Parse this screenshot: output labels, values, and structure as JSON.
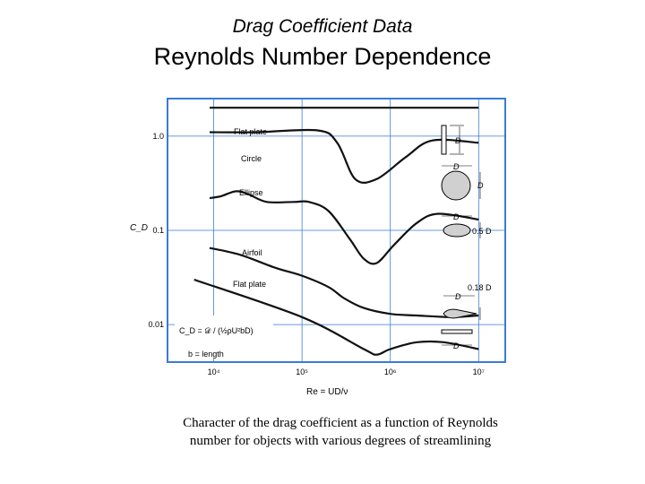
{
  "slide": {
    "subtitle": "Drag Coefficient Data",
    "title": "Reynolds Number Dependence",
    "caption_line1": "Character of the drag coefficient as a function of Reynolds",
    "caption_line2": "number for objects with various degrees of streamlining"
  },
  "chart_data": {
    "type": "line",
    "x_scale": "log",
    "y_scale": "log",
    "xlim": [
      3000,
      20000000
    ],
    "ylim": [
      0.004,
      2.5
    ],
    "grid": true,
    "x_ticks": [
      10000,
      100000,
      1000000,
      10000000
    ],
    "x_tick_labels": [
      "10⁴",
      "10⁵",
      "10⁶",
      "10⁷"
    ],
    "y_ticks": [
      1.0,
      0.1,
      0.01
    ],
    "y_tick_labels": [
      "1.0",
      "0.1",
      "0.01"
    ],
    "ylabel": "C_D",
    "xlabel": "Re = UD/ν",
    "formula": "C_D = 𝒟 / (½ρU²bD)",
    "b_note": "b = length",
    "ratio_ellipse": "0.5 D",
    "ratio_airfoil": "0.18 D",
    "dim_D": "D",
    "series": [
      {
        "name": "Flat plate",
        "points": [
          [
            9000,
            2.0
          ],
          [
            20000,
            2.0
          ],
          [
            100000,
            2.0
          ],
          [
            1000000,
            2.0
          ],
          [
            10000000,
            2.0
          ]
        ]
      },
      {
        "name": "Circle",
        "points": [
          [
            9000,
            1.1
          ],
          [
            30000,
            1.1
          ],
          [
            150000,
            1.15
          ],
          [
            250000,
            0.85
          ],
          [
            400000,
            0.35
          ],
          [
            700000,
            0.35
          ],
          [
            1500000,
            0.6
          ],
          [
            3000000,
            0.9
          ],
          [
            10000000,
            0.85
          ]
        ]
      },
      {
        "name": "Ellipse",
        "points": [
          [
            9000,
            0.22
          ],
          [
            12000,
            0.23
          ],
          [
            18000,
            0.26
          ],
          [
            25000,
            0.24
          ],
          [
            40000,
            0.2
          ],
          [
            80000,
            0.2
          ],
          [
            120000,
            0.2
          ],
          [
            200000,
            0.16
          ],
          [
            350000,
            0.08
          ],
          [
            500000,
            0.05
          ],
          [
            700000,
            0.045
          ],
          [
            1100000,
            0.07
          ],
          [
            2000000,
            0.12
          ],
          [
            3500000,
            0.15
          ],
          [
            10000000,
            0.13
          ]
        ]
      },
      {
        "name": "Airfoil",
        "points": [
          [
            9000,
            0.065
          ],
          [
            20000,
            0.055
          ],
          [
            50000,
            0.04
          ],
          [
            100000,
            0.033
          ],
          [
            200000,
            0.025
          ],
          [
            300000,
            0.019
          ],
          [
            500000,
            0.015
          ],
          [
            1000000,
            0.013
          ],
          [
            2000000,
            0.0125
          ],
          [
            5000000,
            0.012
          ],
          [
            10000000,
            0.0125
          ]
        ]
      },
      {
        "name": "Flat plate",
        "points": [
          [
            6000,
            0.03
          ],
          [
            100000,
            0.012
          ],
          [
            500000,
            0.0055
          ],
          [
            700000,
            0.0048
          ],
          [
            1000000,
            0.0055
          ],
          [
            2000000,
            0.0065
          ],
          [
            4000000,
            0.0065
          ],
          [
            10000000,
            0.0055
          ]
        ]
      }
    ]
  }
}
